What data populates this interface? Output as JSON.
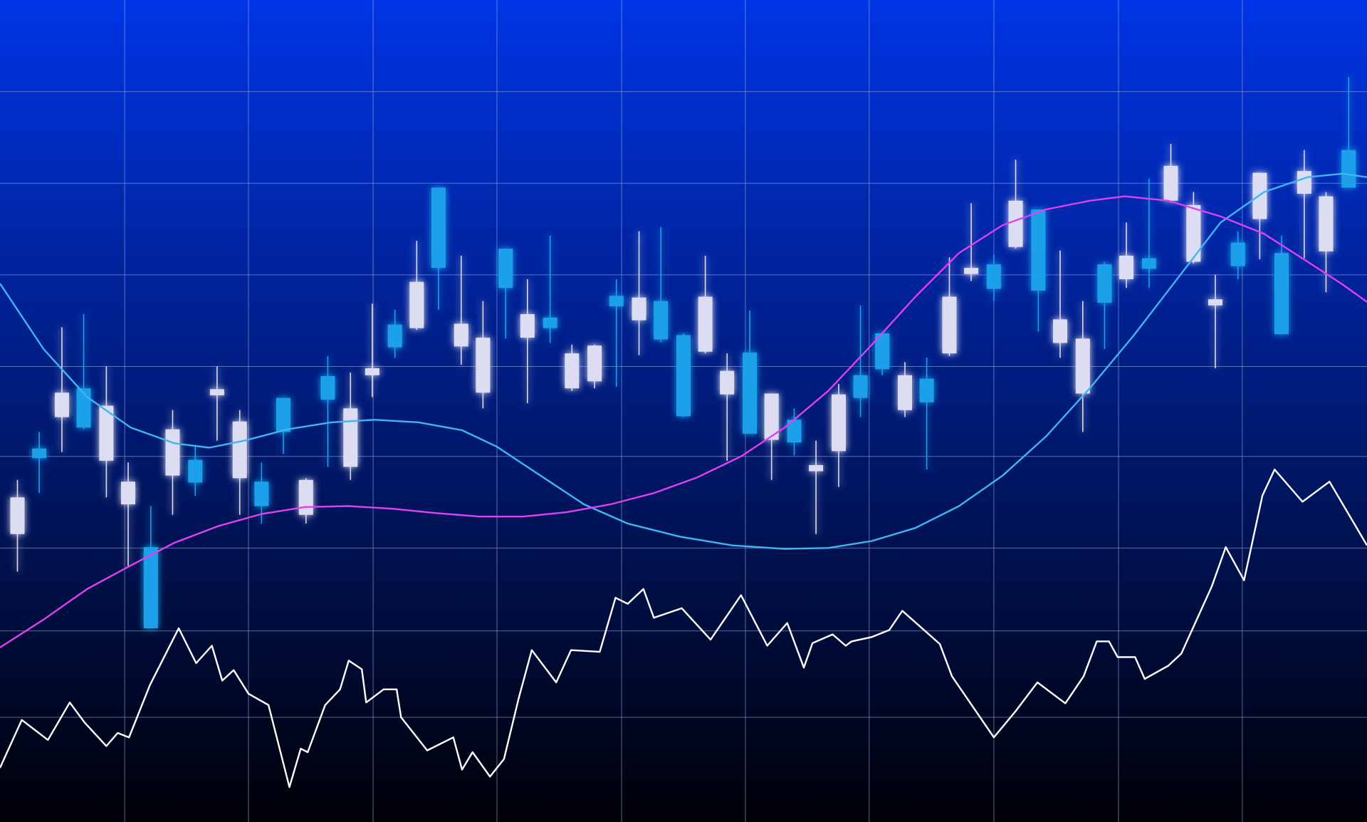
{
  "chart_data": {
    "type": "candlestick",
    "xlim": [
      0,
      1568
    ],
    "ylim": [
      0,
      942
    ],
    "xticks": [
      143,
      285,
      428,
      570,
      713,
      855,
      997,
      1140,
      1283,
      1425
    ],
    "yticks": [
      120,
      219,
      314,
      419,
      522,
      627,
      732,
      837
    ],
    "grid": true,
    "grid_color": "#a8b4e8",
    "background": [
      "#0035e6",
      "#000006"
    ],
    "up_color": "#dcdcf2",
    "down_color": "#1aa0ea",
    "x": [
      20,
      45,
      71,
      96,
      122,
      147,
      173,
      198,
      224,
      249,
      275,
      300,
      325,
      351,
      376,
      402,
      427,
      453,
      478,
      503,
      529,
      554,
      580,
      605,
      631,
      656,
      682,
      707,
      733,
      758,
      784,
      809,
      834,
      860,
      885,
      911,
      936,
      962,
      987,
      1012,
      1038,
      1063,
      1089,
      1114,
      1140,
      1165,
      1191,
      1216,
      1242,
      1267,
      1292,
      1318,
      1343,
      1369,
      1394,
      1420,
      1445,
      1470,
      1496,
      1521,
      1547
    ],
    "open": [
      330,
      428,
      464,
      497,
      414,
      364,
      315,
      397,
      415,
      489,
      394,
      390,
      486,
      352,
      511,
      407,
      512,
      570,
      566,
      727,
      545,
      492,
      657,
      555,
      578,
      497,
      505,
      603,
      575,
      597,
      558,
      539,
      490,
      538,
      438,
      461,
      402,
      425,
      512,
      560,
      472,
      508,
      537,
      628,
      639,
      659,
      702,
      549,
      491,
      639,
      622,
      646,
      712,
      642,
      592,
      664,
      691,
      652,
      720,
      654,
      770
    ],
    "high": [
      392,
      447,
      567,
      582,
      522,
      412,
      362,
      472,
      432,
      522,
      472,
      412,
      486,
      394,
      534,
      515,
      594,
      587,
      666,
      727,
      649,
      597,
      657,
      622,
      672,
      547,
      547,
      622,
      677,
      682,
      560,
      649,
      537,
      586,
      491,
      474,
      437,
      502,
      592,
      560,
      527,
      532,
      647,
      709,
      650,
      759,
      702,
      655,
      597,
      642,
      687,
      737,
      777,
      722,
      627,
      677,
      744,
      672,
      770,
      722,
      854
    ],
    "low": [
      287,
      377,
      424,
      450,
      372,
      292,
      222,
      352,
      374,
      437,
      352,
      342,
      422,
      342,
      407,
      392,
      487,
      532,
      564,
      587,
      524,
      474,
      554,
      480,
      549,
      494,
      497,
      499,
      535,
      550,
      464,
      537,
      414,
      445,
      392,
      420,
      330,
      384,
      464,
      512,
      464,
      404,
      534,
      620,
      597,
      657,
      562,
      532,
      447,
      542,
      612,
      612,
      710,
      640,
      520,
      622,
      645,
      559,
      646,
      607,
      727
    ],
    "close": [
      372,
      417,
      492,
      452,
      477,
      390,
      222,
      450,
      389,
      496,
      459,
      362,
      447,
      392,
      484,
      474,
      520,
      544,
      619,
      635,
      571,
      555,
      612,
      582,
      566,
      537,
      546,
      591,
      601,
      553,
      465,
      602,
      517,
      445,
      491,
      435,
      409,
      490,
      486,
      519,
      512,
      481,
      602,
      635,
      611,
      712,
      609,
      576,
      554,
      595,
      649,
      634,
      752,
      707,
      599,
      637,
      744,
      559,
      746,
      717,
      727
    ],
    "series": [
      {
        "color": "#3fb6f2",
        "x": [
          0,
          50,
          100,
          150,
          200,
          240,
          280,
          330,
          380,
          430,
          480,
          530,
          570,
          620,
          670,
          720,
          780,
          840,
          900,
          950,
          1000,
          1050,
          1100,
          1150,
          1200,
          1250,
          1300,
          1350,
          1400,
          1450,
          1500,
          1540,
          1568
        ],
        "values": [
          617,
          542,
          487,
          452,
          434,
          429,
          437,
          450,
          458,
          461,
          458,
          449,
          430,
          397,
          364,
          342,
          327,
          317,
          313,
          314,
          322,
          337,
          362,
          397,
          442,
          497,
          557,
          622,
          687,
          722,
          739,
          743,
          739
        ]
      },
      {
        "color": "#e040f0",
        "x": [
          0,
          50,
          100,
          150,
          200,
          250,
          300,
          350,
          400,
          450,
          500,
          550,
          600,
          650,
          700,
          750,
          800,
          850,
          900,
          950,
          1000,
          1050,
          1100,
          1150,
          1200,
          1250,
          1290,
          1340,
          1400,
          1450,
          1500,
          1540,
          1568
        ],
        "values": [
          200,
          232,
          267,
          294,
          320,
          339,
          353,
          361,
          362,
          359,
          354,
          350,
          350,
          355,
          364,
          377,
          395,
          419,
          452,
          494,
          547,
          602,
          652,
          684,
          702,
          712,
          717,
          712,
          694,
          674,
          642,
          616,
          596
        ]
      },
      {
        "color": "#ffffff",
        "x": [
          0,
          25,
          55,
          80,
          97,
          122,
          135,
          148,
          172,
          205,
          225,
          243,
          255,
          268,
          285,
          308,
          332,
          345,
          353,
          373,
          390,
          400,
          415,
          420,
          440,
          455,
          460,
          490,
          520,
          530,
          542,
          562,
          578,
          595,
          610,
          638,
          655,
          688,
          706,
          720,
          738,
          750,
          782,
          815,
          850,
          880,
          903,
          922,
          932,
          955,
          970,
          977,
          1000,
          1020,
          1035,
          1078,
          1092,
          1140,
          1165,
          1190,
          1222,
          1243,
          1258,
          1272,
          1282,
          1302,
          1313,
          1340,
          1355,
          1390,
          1406,
          1427,
          1448,
          1462,
          1494,
          1525,
          1568
        ],
        "values": [
          62,
          117,
          94,
          137,
          114,
          87,
          102,
          97,
          157,
          222,
          182,
          202,
          162,
          174,
          147,
          134,
          40,
          84,
          80,
          134,
          152,
          185,
          175,
          137,
          152,
          152,
          120,
          82,
          97,
          60,
          80,
          52,
          72,
          142,
          197,
          160,
          197,
          195,
          257,
          250,
          267,
          234,
          245,
          209,
          260,
          202,
          228,
          177,
          205,
          215,
          202,
          207,
          212,
          220,
          242,
          204,
          167,
          97,
          127,
          160,
          136,
          167,
          207,
          207,
          189,
          189,
          164,
          179,
          193,
          270,
          315,
          277,
          374,
          404,
          367,
          390,
          317
        ]
      }
    ]
  }
}
